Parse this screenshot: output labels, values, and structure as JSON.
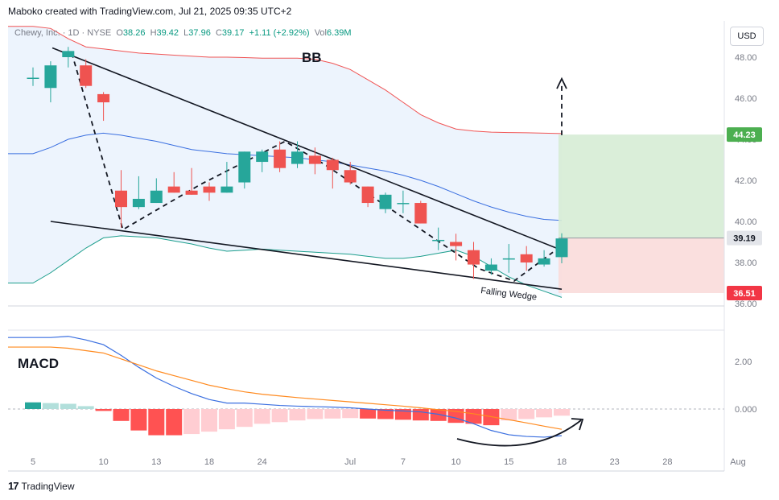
{
  "header": {
    "credit": "Maboko created with TradingView.com, Jul 21, 2025 09:35 UTC+2"
  },
  "legend": {
    "symbol": "Chewy, Inc. · 1D · NYSE",
    "open_label": "O",
    "open": "38.26",
    "high_label": "H",
    "high": "39.42",
    "low_label": "L",
    "low": "37.96",
    "close_label": "C",
    "close": "39.17",
    "change": "+1.11 (+2.92%)",
    "vol_label": "Vol",
    "vol": "6.39M"
  },
  "currency_button": "USD",
  "footer": {
    "logo": "TradingView"
  },
  "colors": {
    "up": "#26a69a",
    "down": "#ef5350",
    "bb_upper": "#f05454",
    "bb_basis": "#3a6fe0",
    "bb_lower": "#1c9e8c",
    "macd_line": "#3a6fe0",
    "signal_line": "#ff8a1f",
    "profit_zone": "#d6ecd5",
    "loss_zone": "#fadcda"
  },
  "chart_data": [
    {
      "type": "candlestick",
      "title": "",
      "annotations": {
        "bb": "BB",
        "wedge": "Falling Wedge"
      },
      "ylim": [
        36.0,
        49.0
      ],
      "y_ticks": [
        "48.00",
        "46.00",
        "44.00",
        "42.00",
        "40.00",
        "38.00",
        "36.00"
      ],
      "x_tick_labels": [
        {
          "label": "5",
          "idx": 0
        },
        {
          "label": "10",
          "idx": 4
        },
        {
          "label": "13",
          "idx": 7
        },
        {
          "label": "18",
          "idx": 10
        },
        {
          "label": "24",
          "idx": 13
        },
        {
          "label": "Jul",
          "idx": 18
        },
        {
          "label": "7",
          "idx": 21
        },
        {
          "label": "10",
          "idx": 24
        },
        {
          "label": "15",
          "idx": 27
        },
        {
          "label": "18",
          "idx": 30
        },
        {
          "label": "23",
          "idx": 33
        },
        {
          "label": "28",
          "idx": 36
        },
        {
          "label": "Aug",
          "idx": 40
        }
      ],
      "candles": [
        {
          "o": 47.0,
          "h": 47.5,
          "l": 46.6,
          "c": 47.0
        },
        {
          "o": 46.5,
          "h": 47.8,
          "l": 45.8,
          "c": 47.6
        },
        {
          "o": 48.0,
          "h": 48.5,
          "l": 47.5,
          "c": 48.3
        },
        {
          "o": 47.6,
          "h": 47.9,
          "l": 46.5,
          "c": 46.6
        },
        {
          "o": 46.2,
          "h": 46.3,
          "l": 44.9,
          "c": 45.8
        },
        {
          "o": 41.5,
          "h": 42.5,
          "l": 39.7,
          "c": 40.7
        },
        {
          "o": 40.7,
          "h": 42.2,
          "l": 40.6,
          "c": 41.1
        },
        {
          "o": 40.9,
          "h": 42.1,
          "l": 40.9,
          "c": 41.5
        },
        {
          "o": 41.7,
          "h": 42.4,
          "l": 41.4,
          "c": 41.4
        },
        {
          "o": 41.5,
          "h": 42.6,
          "l": 41.3,
          "c": 41.3
        },
        {
          "o": 41.7,
          "h": 41.9,
          "l": 41.0,
          "c": 41.4
        },
        {
          "o": 41.4,
          "h": 42.9,
          "l": 41.4,
          "c": 41.7
        },
        {
          "o": 41.9,
          "h": 43.4,
          "l": 41.6,
          "c": 43.4
        },
        {
          "o": 42.9,
          "h": 43.5,
          "l": 42.4,
          "c": 43.4
        },
        {
          "o": 43.5,
          "h": 43.9,
          "l": 42.4,
          "c": 42.6
        },
        {
          "o": 42.8,
          "h": 43.9,
          "l": 42.6,
          "c": 43.4
        },
        {
          "o": 43.2,
          "h": 43.6,
          "l": 42.3,
          "c": 42.8
        },
        {
          "o": 43.0,
          "h": 43.1,
          "l": 41.6,
          "c": 42.5
        },
        {
          "o": 42.5,
          "h": 42.9,
          "l": 41.8,
          "c": 41.9
        },
        {
          "o": 41.7,
          "h": 41.7,
          "l": 40.7,
          "c": 40.9
        },
        {
          "o": 40.6,
          "h": 41.4,
          "l": 40.4,
          "c": 41.3
        },
        {
          "o": 40.9,
          "h": 41.5,
          "l": 40.4,
          "c": 40.9
        },
        {
          "o": 40.9,
          "h": 41.0,
          "l": 39.9,
          "c": 39.9
        },
        {
          "o": 39.1,
          "h": 39.7,
          "l": 38.6,
          "c": 39.1
        },
        {
          "o": 39.0,
          "h": 39.4,
          "l": 38.1,
          "c": 38.8
        },
        {
          "o": 38.6,
          "h": 39.0,
          "l": 37.2,
          "c": 37.9
        },
        {
          "o": 37.6,
          "h": 38.2,
          "l": 37.4,
          "c": 37.9
        },
        {
          "o": 38.2,
          "h": 38.9,
          "l": 37.5,
          "c": 38.2
        },
        {
          "o": 38.4,
          "h": 38.8,
          "l": 37.6,
          "c": 38.0
        },
        {
          "o": 37.9,
          "h": 38.6,
          "l": 37.8,
          "c": 38.2
        },
        {
          "o": 38.26,
          "h": 39.42,
          "l": 37.96,
          "c": 39.17
        }
      ],
      "bollinger": {
        "upper": [
          49.5,
          49.4,
          48.9,
          48.5,
          48.4,
          48.3,
          48.2,
          48.15,
          48.1,
          48.05,
          48.0,
          48.0,
          47.98,
          47.95,
          47.95,
          47.95,
          47.9,
          47.7,
          47.4,
          46.9,
          46.4,
          45.8,
          45.2,
          44.8,
          44.5,
          44.4,
          44.35,
          44.33,
          44.32,
          44.3,
          44.28
        ],
        "basis": [
          43.3,
          43.6,
          44.0,
          44.2,
          44.3,
          44.2,
          44.05,
          43.9,
          43.7,
          43.5,
          43.4,
          43.3,
          43.25,
          43.2,
          43.15,
          43.1,
          43.0,
          42.9,
          42.75,
          42.6,
          42.45,
          42.25,
          42.0,
          41.7,
          41.35,
          41.0,
          40.7,
          40.45,
          40.25,
          40.1,
          40.05
        ],
        "lower": [
          37.0,
          37.5,
          38.1,
          38.7,
          39.2,
          39.3,
          39.25,
          39.2,
          39.05,
          38.9,
          38.7,
          38.55,
          38.6,
          38.65,
          38.6,
          38.55,
          38.5,
          38.45,
          38.4,
          38.3,
          38.2,
          38.2,
          38.3,
          38.45,
          38.6,
          38.3,
          37.8,
          37.3,
          36.9,
          36.6,
          36.3
        ]
      },
      "position": {
        "target": "44.23",
        "entry": "39.19",
        "stop": "36.51",
        "target_value": 44.23,
        "entry_value": 39.19,
        "stop_value": 36.51
      }
    },
    {
      "type": "line",
      "title": "",
      "annotation": "MACD",
      "ylim": [
        -1.4,
        3.0
      ],
      "y_ticks": [
        "2.00",
        "0.000"
      ],
      "series": [
        {
          "name": "MACD",
          "values": [
            3.0,
            3.0,
            3.05,
            2.9,
            2.7,
            2.25,
            1.75,
            1.3,
            0.95,
            0.65,
            0.4,
            0.25,
            0.25,
            0.2,
            0.15,
            0.12,
            0.1,
            0.08,
            0.05,
            0.0,
            -0.05,
            -0.08,
            -0.12,
            -0.22,
            -0.38,
            -0.62,
            -0.9,
            -1.08,
            -1.15,
            -1.18,
            -1.12
          ]
        },
        {
          "name": "Signal",
          "values": [
            2.6,
            2.6,
            2.55,
            2.45,
            2.35,
            2.1,
            1.85,
            1.6,
            1.4,
            1.2,
            1.0,
            0.85,
            0.72,
            0.62,
            0.55,
            0.48,
            0.42,
            0.36,
            0.3,
            0.24,
            0.18,
            0.12,
            0.05,
            -0.03,
            -0.1,
            -0.2,
            -0.32,
            -0.45,
            -0.58,
            -0.72,
            -0.85
          ]
        }
      ],
      "histogram": [
        0.28,
        0.25,
        0.22,
        0.12,
        -0.08,
        -0.5,
        -0.9,
        -1.1,
        -1.1,
        -1.05,
        -0.95,
        -0.85,
        -0.75,
        -0.62,
        -0.55,
        -0.48,
        -0.42,
        -0.4,
        -0.38,
        -0.4,
        -0.42,
        -0.45,
        -0.48,
        -0.5,
        -0.58,
        -0.62,
        -0.68,
        -0.48,
        -0.42,
        -0.35,
        -0.28
      ]
    }
  ]
}
